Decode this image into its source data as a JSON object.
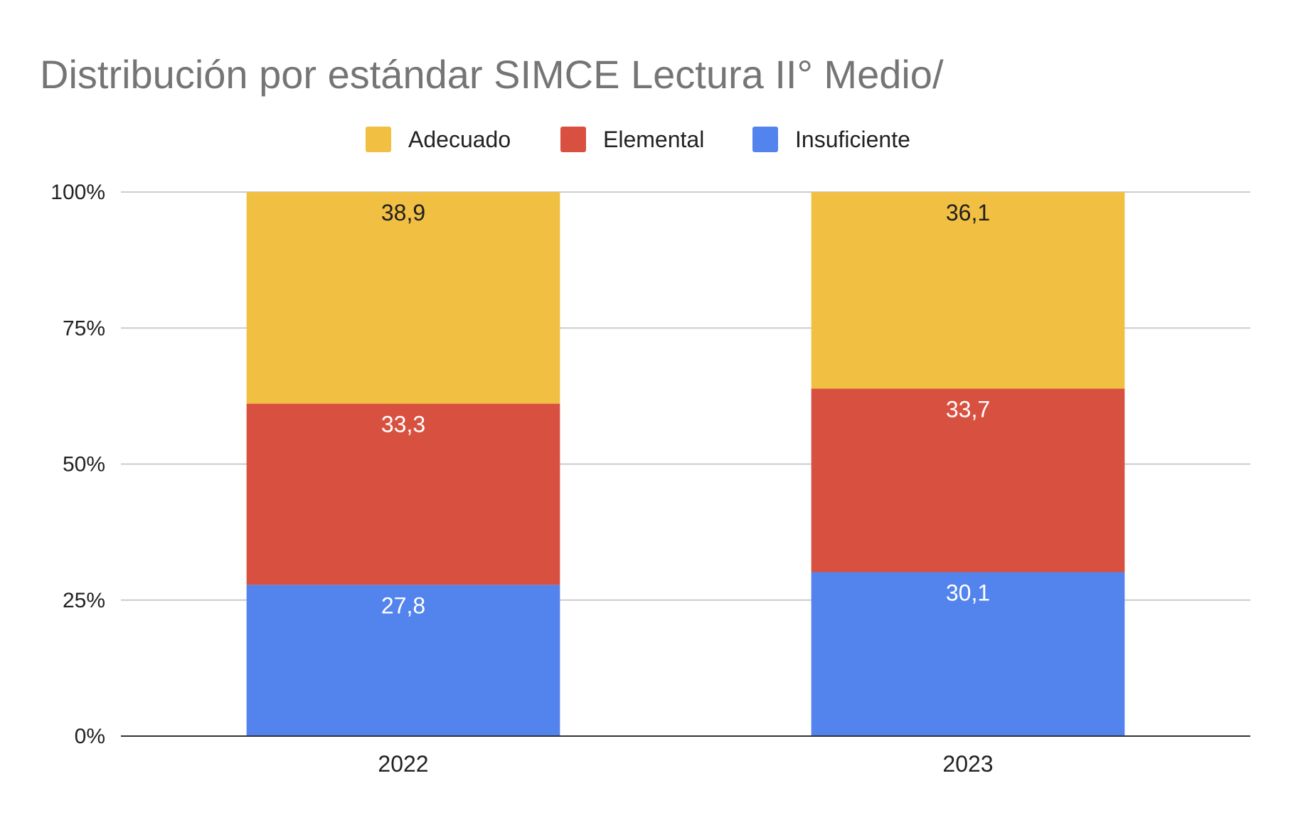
{
  "chart_data": {
    "type": "bar",
    "stacked": true,
    "normalized": true,
    "title": "Distribución por estándar SIMCE Lectura II° Medio/",
    "categories": [
      "2022",
      "2023"
    ],
    "series": [
      {
        "name": "Insuficiente",
        "color": "#5383EC",
        "values": [
          27.8,
          30.1
        ],
        "labels": [
          "27,8",
          "30,1"
        ],
        "label_color": "#ffffff"
      },
      {
        "name": "Elemental",
        "color": "#D85140",
        "values": [
          33.3,
          33.7
        ],
        "labels": [
          "33,3",
          "33,7"
        ],
        "label_color": "#ffffff"
      },
      {
        "name": "Adecuado",
        "color": "#F1BF42",
        "values": [
          38.9,
          36.1
        ],
        "labels": [
          "38,9",
          "36,1"
        ],
        "label_color": "#1f1f1f"
      }
    ],
    "legend": {
      "position": "top",
      "order": [
        "Adecuado",
        "Elemental",
        "Insuficiente"
      ]
    },
    "yticks": [
      "0%",
      "25%",
      "50%",
      "75%",
      "100%"
    ],
    "ylim": [
      0,
      100
    ],
    "grid": true,
    "xlabel": "",
    "ylabel": ""
  }
}
